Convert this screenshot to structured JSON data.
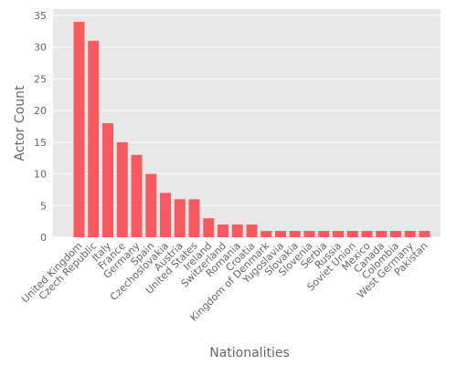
{
  "chart_data": {
    "type": "bar",
    "title": "",
    "xlabel": "Nationalities",
    "ylabel": "Actor Count",
    "ylim": [
      0,
      36
    ],
    "yticks": [
      0,
      5,
      10,
      15,
      20,
      25,
      30,
      35
    ],
    "grid": true,
    "legend": "none",
    "colors": {
      "bar": "#f8595e",
      "background": "#e8e8e8",
      "grid": "#ffffff",
      "text": "#666666"
    },
    "categories": [
      "United Kingdom",
      "Czech Republic",
      "Italy",
      "France",
      "Germany",
      "Spain",
      "Czechoslovakia",
      "Austria",
      "United States",
      "Ireland",
      "Switzerland",
      "Romania",
      "Croatia",
      "Kingdom of Denmark",
      "Yugoslavia",
      "Slovakia",
      "Slovenia",
      "Serbia",
      "Russia",
      "Soviet Union",
      "Mexico",
      "Canada",
      "Colombia",
      "West Germany",
      "Pakistan"
    ],
    "values": [
      34,
      31,
      18,
      15,
      13,
      10,
      7,
      6,
      6,
      3,
      2,
      2,
      2,
      1,
      1,
      1,
      1,
      1,
      1,
      1,
      1,
      1,
      1,
      1,
      1
    ]
  }
}
